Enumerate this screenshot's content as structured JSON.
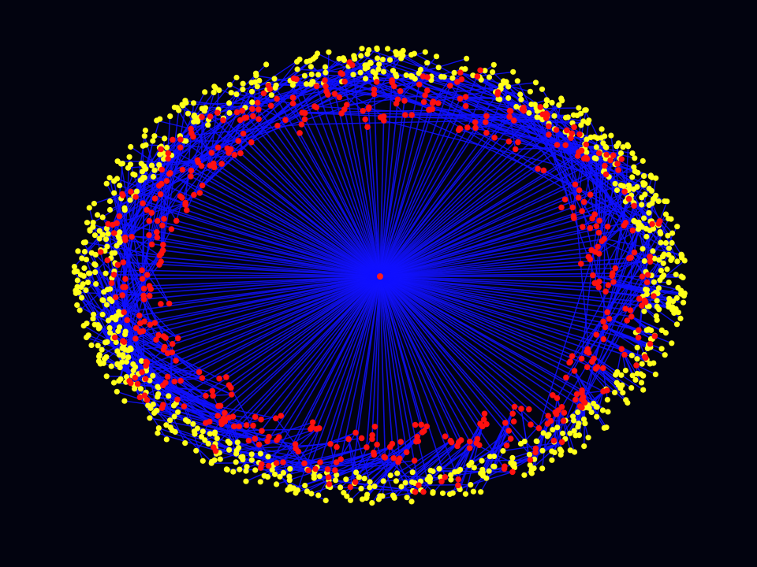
{
  "graph": {
    "background": "#02030f",
    "edge_color": "#1010ff",
    "hub_color": "#ff1a1a",
    "inner_node_color": "#ff1010",
    "outer_node_color": "#ffff1a",
    "hub_count": 1,
    "layout": "radial"
  }
}
